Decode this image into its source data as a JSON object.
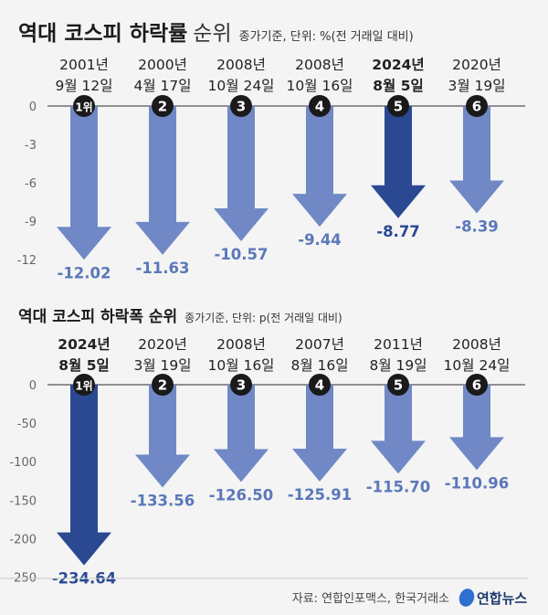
{
  "colors": {
    "background": "#f4f4f4",
    "arrow": "#7089c6",
    "highlight": "#2b4893",
    "value_text": "#5b78ba",
    "badge": "#1a1a1a"
  },
  "chart_data": [
    {
      "type": "bar",
      "title": "역대 코스피 하락률",
      "title_suffix": "순위",
      "subtitle": "종가기준, 단위: %(전 거래일 대비)",
      "categories": [
        [
          "2001년",
          "9월 12일"
        ],
        [
          "2000년",
          "4월 17일"
        ],
        [
          "2008년",
          "10월 24일"
        ],
        [
          "2008년",
          "10월 16일"
        ],
        [
          "2024년",
          "8월 5일"
        ],
        [
          "2020년",
          "3월 19일"
        ]
      ],
      "ranks": [
        "1위",
        "2",
        "3",
        "4",
        "5",
        "6"
      ],
      "values": [
        -12.02,
        -11.63,
        -10.57,
        -9.44,
        -8.77,
        -8.39
      ],
      "value_labels": [
        "-12.02",
        "-11.63",
        "-10.57",
        "-9.44",
        "-8.77",
        "-8.39"
      ],
      "highlight_index": 4,
      "yticks": [
        0,
        -3,
        -6,
        -9,
        -12
      ],
      "ylim": [
        -12.5,
        0
      ]
    },
    {
      "type": "bar",
      "title": "역대 코스피 하락폭 순위",
      "title_suffix": "",
      "subtitle": "종가기준, 단위: p(전 거래일 대비)",
      "categories": [
        [
          "2024년",
          "8월 5일"
        ],
        [
          "2020년",
          "3월 19일"
        ],
        [
          "2008년",
          "10월 16일"
        ],
        [
          "2007년",
          "8월 16일"
        ],
        [
          "2011년",
          "8월 19일"
        ],
        [
          "2008년",
          "10월 24일"
        ]
      ],
      "ranks": [
        "1위",
        "2",
        "3",
        "4",
        "5",
        "6"
      ],
      "values": [
        -234.64,
        -133.56,
        -126.5,
        -125.91,
        -115.7,
        -110.96
      ],
      "value_labels": [
        "-234.64",
        "-133.56",
        "-126.50",
        "-125.91",
        "-115.70",
        "-110.96"
      ],
      "highlight_index": 0,
      "yticks": [
        0,
        -50,
        -100,
        -150,
        -200,
        -250
      ],
      "ylim": [
        -250,
        0
      ]
    }
  ],
  "source": "자료: 연합인포맥스, 한국거래소",
  "logo": "연합뉴스"
}
